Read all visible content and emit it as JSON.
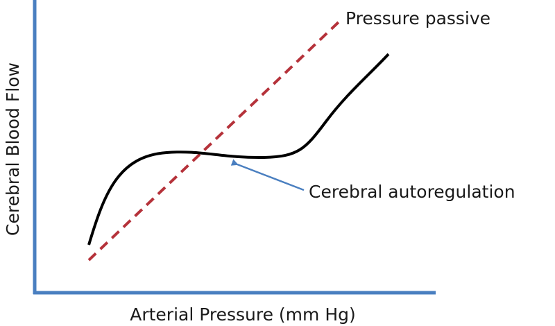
{
  "axes": {
    "x_label": "Arterial Pressure (mm Hg)",
    "y_label": "Cerebral Blood Flow"
  },
  "curves": {
    "passive_label": "Pressure passive",
    "autoregulation_label": "Cerebral autoregulation"
  }
}
